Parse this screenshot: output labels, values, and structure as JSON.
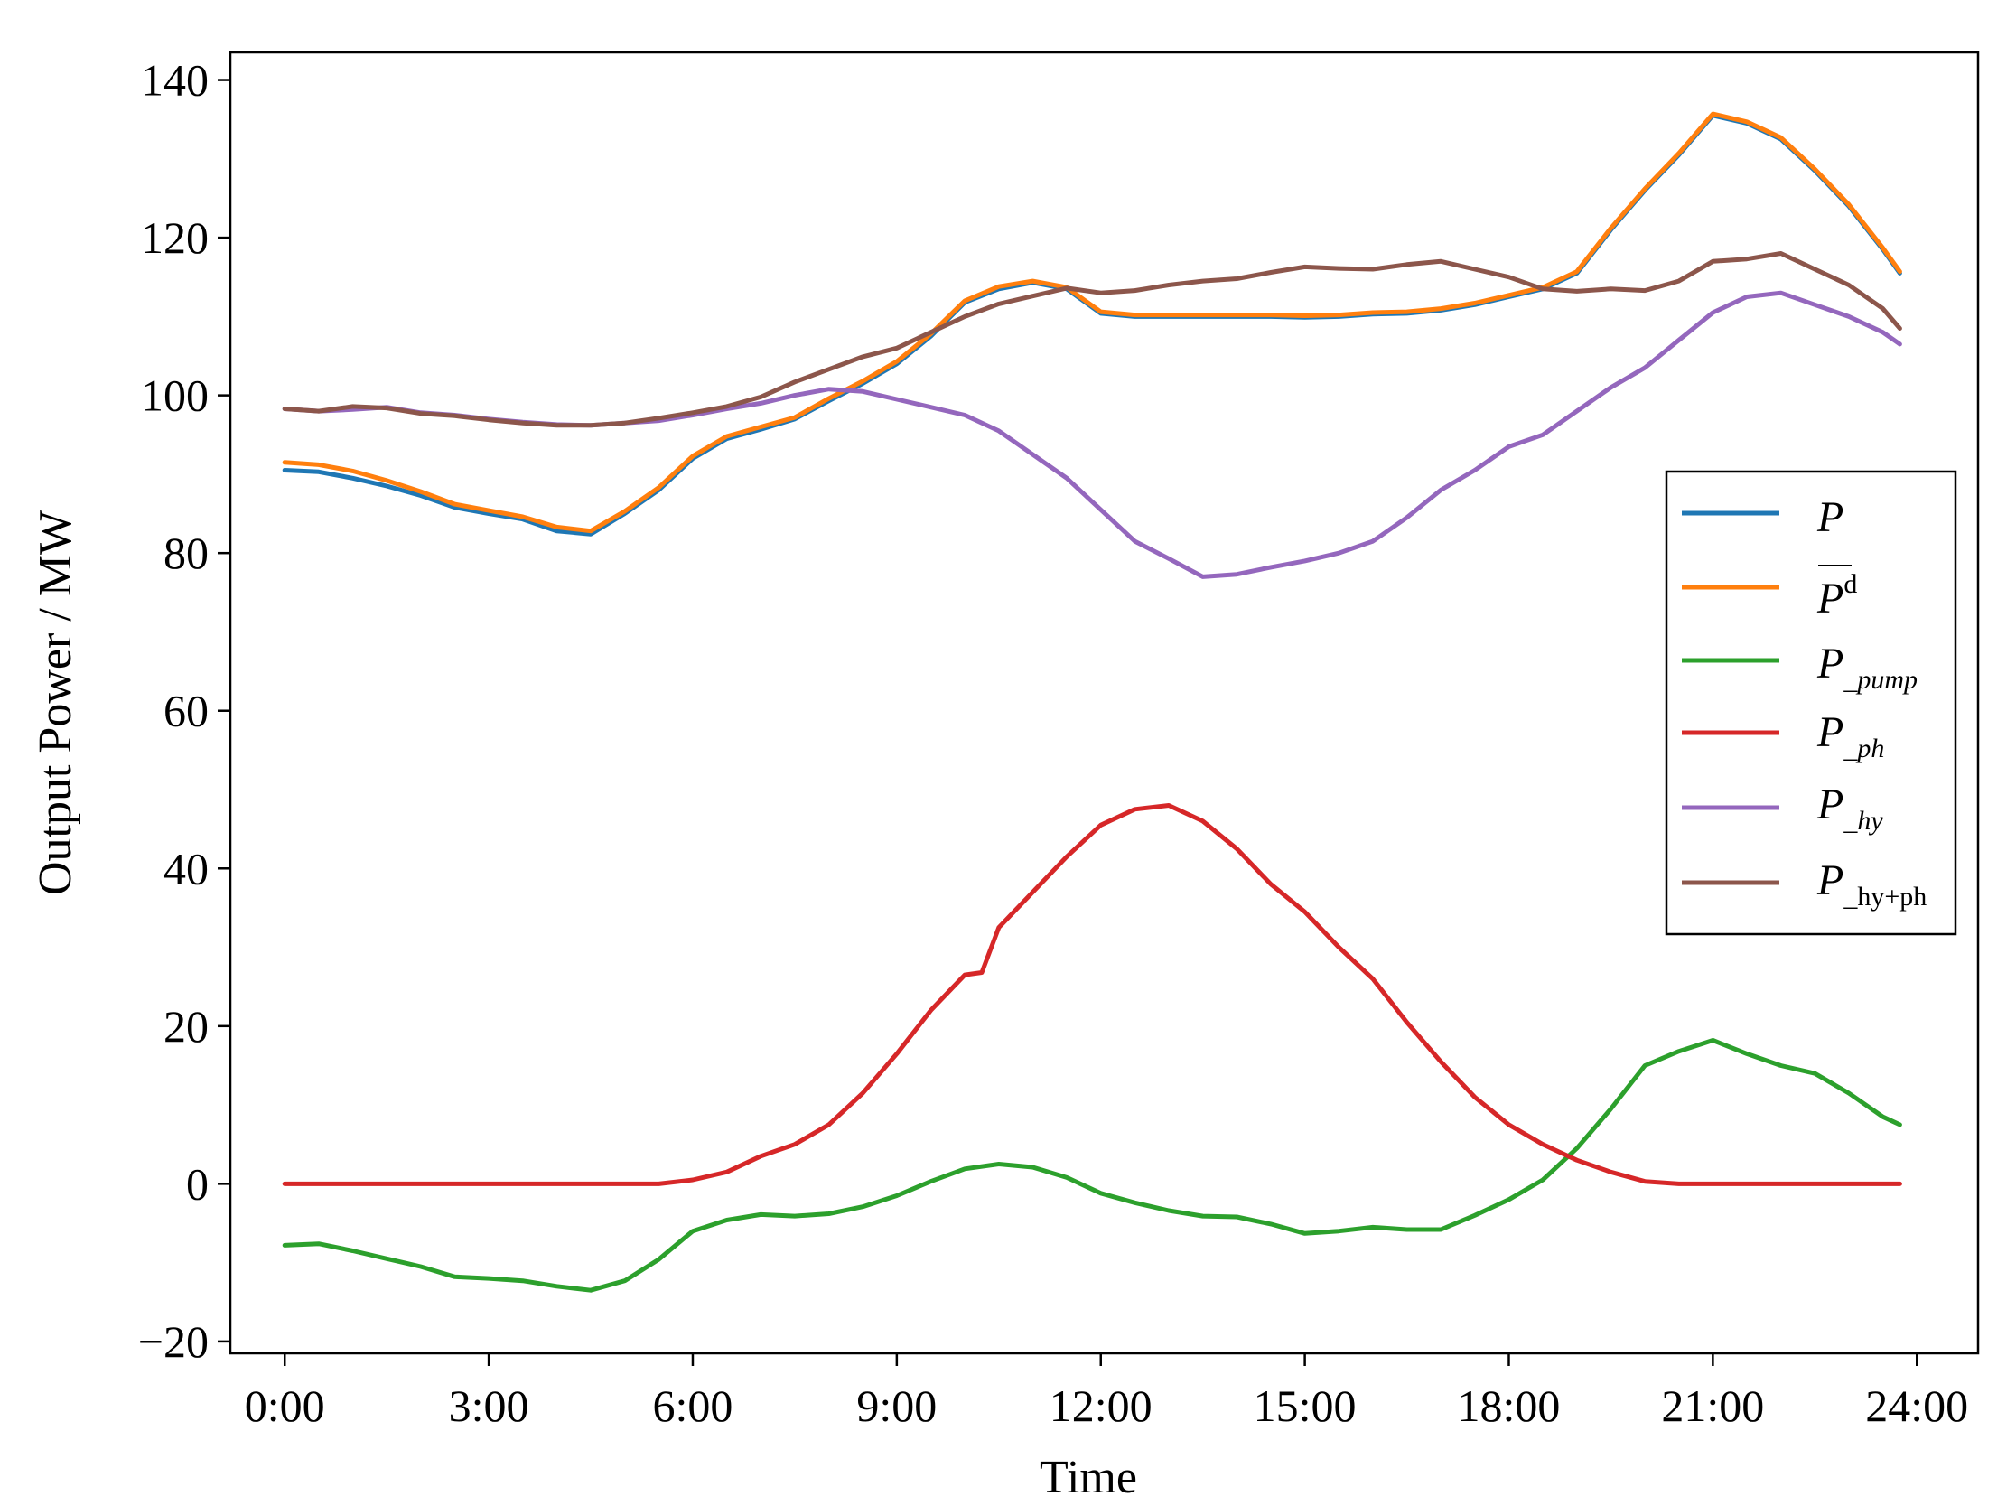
{
  "chart_data": {
    "type": "line",
    "xlabel": "Time",
    "ylabel": "Output Power / MW",
    "xlim": [
      -0.8,
      24.9
    ],
    "ylim": [
      -21.5,
      143.5
    ],
    "xticks": [
      0,
      3,
      6,
      9,
      12,
      15,
      18,
      21,
      24
    ],
    "xtick_labels": [
      "0:00",
      "3:00",
      "6:00",
      "9:00",
      "12:00",
      "15:00",
      "18:00",
      "21:00",
      "24:00"
    ],
    "yticks": [
      -20,
      0,
      20,
      40,
      60,
      80,
      100,
      120,
      140
    ],
    "ytick_labels": [
      "−20",
      "0",
      "20",
      "40",
      "60",
      "80",
      "100",
      "120",
      "140"
    ],
    "grid": false,
    "legend_position": "center-right",
    "series": [
      {
        "name": "P",
        "color": "#1f77b4",
        "x": [
          0,
          0.5,
          1,
          1.5,
          2,
          2.5,
          3,
          3.5,
          4,
          4.5,
          5,
          5.5,
          6,
          6.5,
          7,
          7.5,
          8,
          8.5,
          9,
          9.5,
          10,
          10.5,
          11,
          11.5,
          12,
          12.5,
          13,
          13.5,
          14,
          14.5,
          15,
          15.5,
          16,
          16.5,
          17,
          17.5,
          18,
          18.5,
          19,
          19.5,
          20,
          20.5,
          21,
          21.5,
          22,
          22.5,
          23,
          23.5,
          23.75
        ],
        "values": [
          90.5,
          90.3,
          89.5,
          88.5,
          87.3,
          85.8,
          85.0,
          84.3,
          82.8,
          82.4,
          85.0,
          88.0,
          92.0,
          94.5,
          95.7,
          97.0,
          99.3,
          101.5,
          104.0,
          107.5,
          111.8,
          113.5,
          114.3,
          113.5,
          110.4,
          110.0,
          110.0,
          110.0,
          110.0,
          110.0,
          109.9,
          110.0,
          110.3,
          110.4,
          110.8,
          111.5,
          112.5,
          113.5,
          115.5,
          121.0,
          126.0,
          130.5,
          135.5,
          134.5,
          132.5,
          128.5,
          124.0,
          118.5,
          115.5
        ]
      },
      {
        "name": "P̅d",
        "color": "#ff7f0e",
        "x": [
          0,
          0.5,
          1,
          1.5,
          2,
          2.5,
          3,
          3.5,
          4,
          4.5,
          5,
          5.5,
          6,
          6.5,
          7,
          7.5,
          8,
          8.5,
          9,
          9.5,
          10,
          10.5,
          11,
          11.5,
          12,
          12.5,
          13,
          13.5,
          14,
          14.5,
          15,
          15.5,
          16,
          16.5,
          17,
          17.5,
          18,
          18.5,
          19,
          19.5,
          20,
          20.5,
          21,
          21.5,
          22,
          22.5,
          23,
          23.5,
          23.75
        ],
        "values": [
          91.5,
          91.2,
          90.4,
          89.2,
          87.8,
          86.2,
          85.4,
          84.6,
          83.3,
          82.8,
          85.3,
          88.3,
          92.3,
          94.8,
          96.0,
          97.2,
          99.6,
          101.8,
          104.3,
          107.8,
          112.0,
          113.8,
          114.5,
          113.7,
          110.6,
          110.2,
          110.2,
          110.2,
          110.2,
          110.2,
          110.1,
          110.2,
          110.5,
          110.6,
          111.0,
          111.7,
          112.7,
          113.7,
          115.7,
          121.2,
          126.2,
          130.7,
          135.7,
          134.7,
          132.7,
          128.7,
          124.2,
          118.7,
          115.7
        ]
      },
      {
        "name": "P_pump",
        "color": "#2ca02c",
        "x": [
          0,
          0.5,
          1,
          1.5,
          2,
          2.5,
          3,
          3.5,
          4,
          4.5,
          5,
          5.5,
          6,
          6.5,
          7,
          7.5,
          8,
          8.5,
          9,
          9.5,
          10,
          10.5,
          11,
          11.5,
          12,
          12.5,
          13,
          13.5,
          14,
          14.5,
          15,
          15.5,
          16,
          16.5,
          17,
          17.5,
          18,
          18.5,
          19,
          19.5,
          20,
          20.5,
          21,
          21.5,
          22,
          22.5,
          23,
          23.5,
          23.75
        ],
        "values": [
          -7.8,
          -7.6,
          -8.5,
          -9.5,
          -10.5,
          -11.8,
          -12.0,
          -12.3,
          -13.0,
          -13.5,
          -12.3,
          -9.6,
          -6.0,
          -4.6,
          -3.9,
          -4.1,
          -3.8,
          -2.9,
          -1.5,
          0.3,
          1.9,
          2.5,
          2.1,
          0.8,
          -1.2,
          -2.4,
          -3.4,
          -4.1,
          -4.2,
          -5.1,
          -6.3,
          -6.0,
          -5.5,
          -5.8,
          -5.8,
          -4.0,
          -2.0,
          0.5,
          4.5,
          9.5,
          15.0,
          16.8,
          18.2,
          16.5,
          15.0,
          14.0,
          11.5,
          8.5,
          7.5
        ]
      },
      {
        "name": "P_ph",
        "color": "#d62728",
        "x": [
          0,
          0.5,
          1,
          1.5,
          2,
          2.5,
          3,
          3.5,
          4,
          4.5,
          5,
          5.5,
          6,
          6.5,
          7,
          7.5,
          8,
          8.5,
          9,
          9.5,
          10,
          10.25,
          10.5,
          11,
          11.5,
          12,
          12.5,
          13,
          13.5,
          14,
          14.5,
          15,
          15.5,
          16,
          16.5,
          17,
          17.5,
          18,
          18.5,
          19,
          19.5,
          20,
          20.5,
          21,
          21.5,
          22,
          22.5,
          23,
          23.5,
          23.75
        ],
        "values": [
          0,
          0,
          0,
          0,
          0,
          0,
          0,
          0,
          0,
          0,
          0,
          0,
          0.5,
          1.5,
          3.5,
          5.0,
          7.5,
          11.5,
          16.5,
          22.0,
          26.5,
          26.8,
          32.5,
          37.0,
          41.5,
          45.5,
          47.5,
          48.0,
          46.0,
          42.5,
          38.0,
          34.5,
          30.0,
          26.0,
          20.5,
          15.5,
          11.0,
          7.5,
          5.0,
          3.0,
          1.5,
          0.3,
          0,
          0,
          0,
          0,
          0,
          0,
          0,
          0
        ]
      },
      {
        "name": "P_hy",
        "color": "#9467bd",
        "x": [
          0,
          0.5,
          1,
          1.5,
          2,
          2.5,
          3,
          3.5,
          4,
          4.5,
          5,
          5.5,
          6,
          6.5,
          7,
          7.5,
          8,
          8.5,
          9,
          9.5,
          10,
          10.5,
          11,
          11.5,
          12,
          12.5,
          13,
          13.5,
          14,
          14.5,
          15,
          15.5,
          16,
          16.5,
          17,
          17.5,
          18,
          18.5,
          19,
          19.5,
          20,
          20.5,
          21,
          21.5,
          22,
          22.5,
          23,
          23.5,
          23.75
        ],
        "values": [
          98.3,
          98.0,
          98.2,
          98.5,
          97.8,
          97.5,
          97.0,
          96.6,
          96.3,
          96.2,
          96.5,
          96.8,
          97.5,
          98.3,
          99.0,
          100.0,
          100.8,
          100.5,
          99.5,
          98.5,
          97.5,
          95.5,
          92.5,
          89.5,
          85.5,
          81.5,
          79.3,
          77.0,
          77.3,
          78.2,
          79.0,
          80.0,
          81.5,
          84.5,
          88.0,
          90.5,
          93.5,
          95.0,
          98.0,
          101.0,
          103.5,
          107.0,
          110.5,
          112.5,
          113.0,
          111.5,
          110.0,
          108.0,
          106.5
        ]
      },
      {
        "name": "P_hy+ph",
        "color": "#8c564b",
        "x": [
          0,
          0.5,
          1,
          1.5,
          2,
          2.5,
          3,
          3.5,
          4,
          4.5,
          5,
          5.5,
          6,
          6.5,
          7,
          7.5,
          8,
          8.5,
          9,
          9.5,
          10,
          10.5,
          11,
          11.5,
          12,
          12.5,
          13,
          13.5,
          14,
          14.5,
          15,
          15.5,
          16,
          16.5,
          17,
          17.5,
          18,
          18.5,
          19,
          19.5,
          20,
          20.5,
          21,
          21.5,
          22,
          22.5,
          23,
          23.5,
          23.75
        ],
        "values": [
          98.3,
          98.0,
          98.6,
          98.4,
          97.7,
          97.4,
          96.9,
          96.5,
          96.2,
          96.2,
          96.5,
          97.1,
          97.8,
          98.6,
          99.8,
          101.7,
          103.3,
          104.9,
          106.0,
          108.0,
          110.0,
          111.6,
          112.6,
          113.6,
          113.0,
          113.3,
          114.0,
          114.5,
          114.8,
          115.6,
          116.3,
          116.1,
          116.0,
          116.6,
          117.0,
          116.0,
          115.0,
          113.5,
          113.2,
          113.5,
          113.3,
          114.5,
          117.0,
          117.3,
          118.0,
          116.0,
          114.0,
          111.0,
          108.5
        ]
      }
    ]
  }
}
